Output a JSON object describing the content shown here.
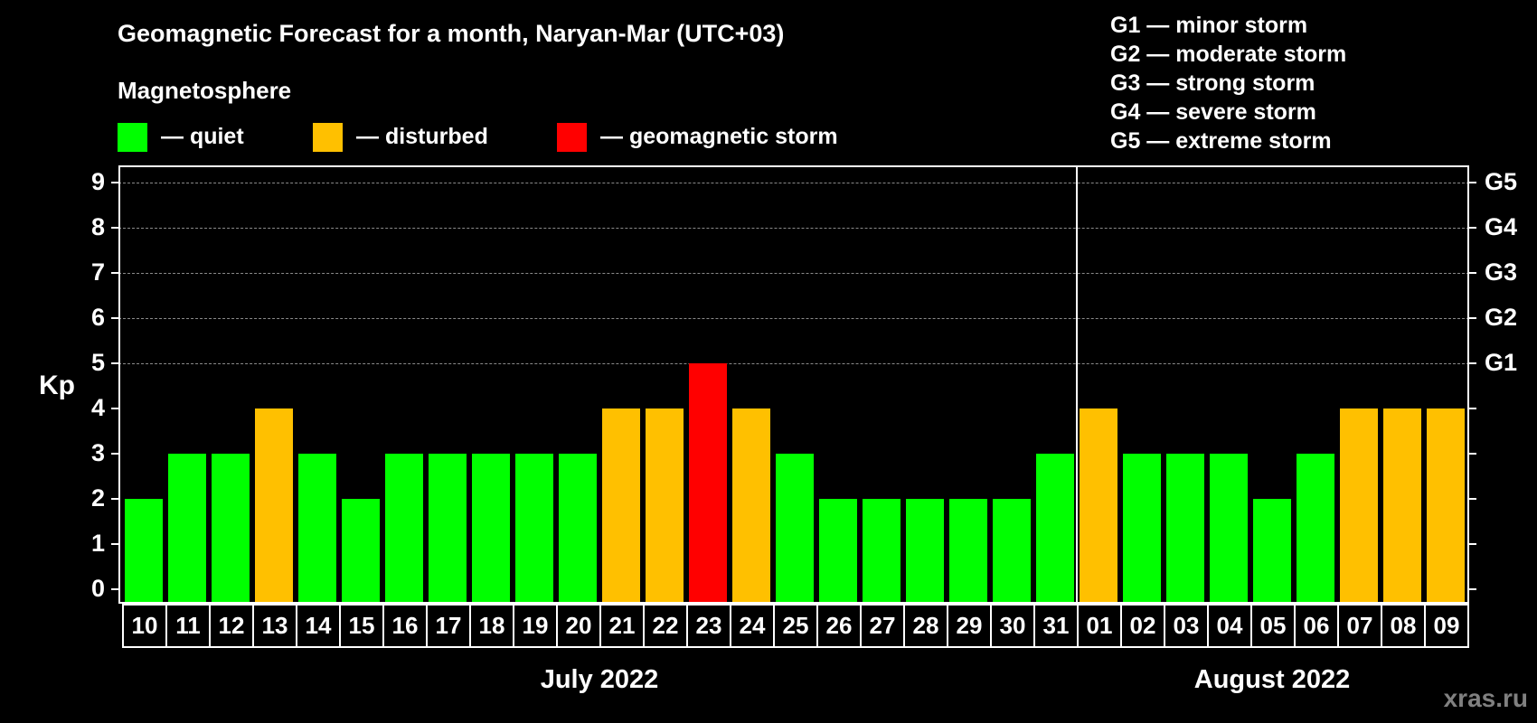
{
  "header": {
    "title": "Geomagnetic Forecast for a month, Naryan-Mar (UTC+03)",
    "section": "Magnetosphere"
  },
  "legend": [
    {
      "label": "— quiet",
      "color": "#00ff00",
      "x": 130
    },
    {
      "label": "— disturbed",
      "color": "#ffc000",
      "x": 346
    },
    {
      "label": "— geomagnetic storm",
      "color": "#ff0000",
      "x": 616
    }
  ],
  "storm_scale": [
    "G1 — minor storm",
    "G2 — moderate storm",
    "G3 — strong storm",
    "G4 — severe storm",
    "G5 — extreme storm"
  ],
  "watermark": "xras.ru",
  "chart_data": {
    "type": "bar",
    "title": "Geomagnetic Forecast for a month, Naryan-Mar (UTC+03)",
    "xlabel": "",
    "ylabel": "Kp",
    "ylim": [
      0,
      9
    ],
    "yticks": [
      0,
      1,
      2,
      3,
      4,
      5,
      6,
      7,
      8,
      9
    ],
    "right_axis_labels": [
      {
        "kp": 5,
        "label": "G1"
      },
      {
        "kp": 6,
        "label": "G2"
      },
      {
        "kp": 7,
        "label": "G3"
      },
      {
        "kp": 8,
        "label": "G4"
      },
      {
        "kp": 9,
        "label": "G5"
      }
    ],
    "grid": "dashed horizontal lines at Kp 5-9",
    "month_groups": [
      {
        "label": "July 2022",
        "start": 0,
        "count": 22
      },
      {
        "label": "August 2022",
        "start": 22,
        "count": 9
      }
    ],
    "categories": [
      "10",
      "11",
      "12",
      "13",
      "14",
      "15",
      "16",
      "17",
      "18",
      "19",
      "20",
      "21",
      "22",
      "23",
      "24",
      "25",
      "26",
      "27",
      "28",
      "29",
      "30",
      "31",
      "01",
      "02",
      "03",
      "04",
      "05",
      "06",
      "07",
      "08",
      "09"
    ],
    "values": [
      2,
      3,
      3,
      4,
      3,
      2,
      3,
      3,
      3,
      3,
      3,
      4,
      4,
      5,
      4,
      3,
      2,
      2,
      2,
      2,
      2,
      3,
      4,
      3,
      3,
      3,
      2,
      3,
      4,
      4,
      4
    ],
    "status": [
      "quiet",
      "quiet",
      "quiet",
      "disturbed",
      "quiet",
      "quiet",
      "quiet",
      "quiet",
      "quiet",
      "quiet",
      "quiet",
      "disturbed",
      "disturbed",
      "storm",
      "disturbed",
      "quiet",
      "quiet",
      "quiet",
      "quiet",
      "quiet",
      "quiet",
      "quiet",
      "disturbed",
      "quiet",
      "quiet",
      "quiet",
      "quiet",
      "quiet",
      "disturbed",
      "disturbed",
      "disturbed"
    ],
    "colors": {
      "quiet": "#00ff00",
      "disturbed": "#ffc000",
      "storm": "#ff0000"
    },
    "legend": [
      "quiet",
      "disturbed",
      "geomagnetic storm"
    ]
  }
}
